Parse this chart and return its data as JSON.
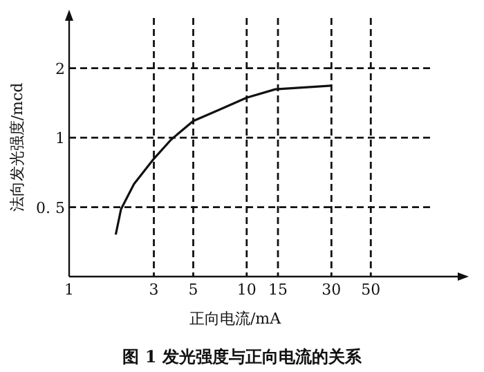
{
  "chart_data": {
    "type": "line",
    "title": "图 1 发光强度与正向电流的关系",
    "xlabel": "正向电流/mA",
    "ylabel": "法向发光强度/mcd",
    "x": [
      1.83,
      1.96,
      2.32,
      3.0,
      3.75,
      5,
      7,
      10,
      14.5,
      30
    ],
    "series": [
      {
        "color": "#111111",
        "values": [
          0.38,
          0.49,
          0.63,
          0.81,
          0.98,
          1.18,
          1.32,
          1.49,
          1.62,
          1.68
        ]
      }
    ],
    "xlim": [
      1,
      160
    ],
    "xticks": [
      1,
      3,
      5,
      10,
      15,
      30,
      50
    ],
    "ylim": [
      0.25,
      3.3
    ],
    "yticks": [
      {
        "value": 0.5,
        "label": "0. 5"
      },
      1,
      2
    ],
    "log": "xy",
    "grid": true
  }
}
